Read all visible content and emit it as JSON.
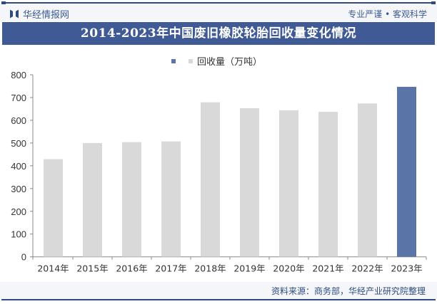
{
  "header": {
    "brand": "华经情报网",
    "slogan": "专业严谨 • 客观科学"
  },
  "title": "2014-2023年中国废旧橡胶轮胎回收量变化情况",
  "legend": {
    "label": "回收量（万吨）"
  },
  "footer": {
    "source": "资料来源：商务部，华经产业研究院整理"
  },
  "watermark": "华经产业研究院",
  "colors": {
    "banner": "#3f5a94",
    "bar_default": "#d9d9d9",
    "bar_highlight": "#5b74a8",
    "axis": "#888888"
  },
  "chart_data": {
    "type": "bar",
    "title": "2014-2023年中国废旧橡胶轮胎回收量变化情况",
    "xlabel": "",
    "ylabel": "",
    "categories": [
      "2014年",
      "2015年",
      "2016年",
      "2017年",
      "2018年",
      "2019年",
      "2020年",
      "2021年",
      "2022年",
      "2023年"
    ],
    "series": [
      {
        "name": "回收量（万吨）",
        "values": [
          429,
          500,
          504,
          507,
          679,
          653,
          644,
          637,
          674,
          747
        ]
      }
    ],
    "highlight_index": 9,
    "ylim": [
      0,
      800
    ],
    "yticks": [
      0,
      100,
      200,
      300,
      400,
      500,
      600,
      700,
      800
    ],
    "grid": false,
    "legend_position": "top-center"
  }
}
